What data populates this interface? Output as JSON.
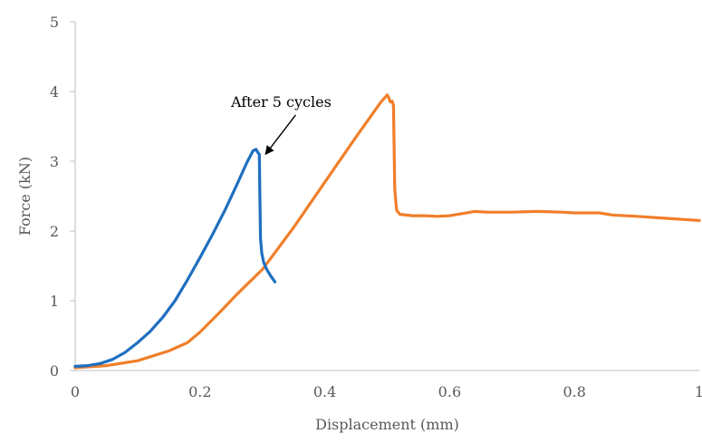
{
  "chart_data": {
    "type": "line",
    "title": "",
    "xlabel": "Displacement (mm)",
    "ylabel": "Force (kN)",
    "xlim": [
      0,
      1
    ],
    "ylim": [
      0,
      5
    ],
    "grid": false,
    "legend": "none",
    "x_ticks": [
      {
        "value": 0,
        "label": "0"
      },
      {
        "value": 0.2,
        "label": "0.2"
      },
      {
        "value": 0.4,
        "label": "0.4"
      },
      {
        "value": 0.6,
        "label": "0.6"
      },
      {
        "value": 0.8,
        "label": "0.8"
      },
      {
        "value": 1,
        "label": "1"
      }
    ],
    "y_ticks": [
      {
        "value": 0,
        "label": "0"
      },
      {
        "value": 1,
        "label": "1"
      },
      {
        "value": 2,
        "label": "2"
      },
      {
        "value": 3,
        "label": "3"
      },
      {
        "value": 4,
        "label": "4"
      },
      {
        "value": 5,
        "label": "5"
      }
    ],
    "annotation": {
      "text": "After 5 cycles",
      "x": 0.305,
      "y": 3.1,
      "text_x": 0.33,
      "text_y": 3.78
    },
    "series": [
      {
        "color": "#1f6fc0",
        "points": [
          [
            0,
            0.06
          ],
          [
            0.02,
            0.07
          ],
          [
            0.04,
            0.1
          ],
          [
            0.06,
            0.16
          ],
          [
            0.08,
            0.26
          ],
          [
            0.1,
            0.4
          ],
          [
            0.12,
            0.56
          ],
          [
            0.14,
            0.76
          ],
          [
            0.16,
            1.0
          ],
          [
            0.18,
            1.3
          ],
          [
            0.2,
            1.62
          ],
          [
            0.22,
            1.95
          ],
          [
            0.24,
            2.3
          ],
          [
            0.26,
            2.68
          ],
          [
            0.275,
            2.98
          ],
          [
            0.285,
            3.15
          ],
          [
            0.29,
            3.17
          ],
          [
            0.293,
            3.12
          ],
          [
            0.295,
            3.1
          ],
          [
            0.296,
            2.5
          ],
          [
            0.297,
            1.9
          ],
          [
            0.299,
            1.68
          ],
          [
            0.302,
            1.55
          ],
          [
            0.307,
            1.45
          ],
          [
            0.313,
            1.36
          ],
          [
            0.32,
            1.27
          ]
        ]
      },
      {
        "color": "#f07f2a",
        "points": [
          [
            0,
            0.04
          ],
          [
            0.05,
            0.07
          ],
          [
            0.1,
            0.14
          ],
          [
            0.15,
            0.28
          ],
          [
            0.18,
            0.4
          ],
          [
            0.2,
            0.55
          ],
          [
            0.23,
            0.82
          ],
          [
            0.26,
            1.1
          ],
          [
            0.3,
            1.45
          ],
          [
            0.35,
            2.05
          ],
          [
            0.4,
            2.7
          ],
          [
            0.45,
            3.35
          ],
          [
            0.49,
            3.85
          ],
          [
            0.5,
            3.95
          ],
          [
            0.502,
            3.92
          ],
          [
            0.505,
            3.85
          ],
          [
            0.508,
            3.86
          ],
          [
            0.51,
            3.8
          ],
          [
            0.511,
            3.2
          ],
          [
            0.512,
            2.6
          ],
          [
            0.515,
            2.3
          ],
          [
            0.52,
            2.24
          ],
          [
            0.54,
            2.22
          ],
          [
            0.56,
            2.22
          ],
          [
            0.58,
            2.21
          ],
          [
            0.6,
            2.22
          ],
          [
            0.62,
            2.25
          ],
          [
            0.64,
            2.28
          ],
          [
            0.66,
            2.27
          ],
          [
            0.7,
            2.27
          ],
          [
            0.74,
            2.28
          ],
          [
            0.78,
            2.27
          ],
          [
            0.8,
            2.26
          ],
          [
            0.84,
            2.26
          ],
          [
            0.86,
            2.23
          ],
          [
            0.9,
            2.21
          ],
          [
            0.95,
            2.18
          ],
          [
            1.0,
            2.15
          ]
        ]
      }
    ]
  }
}
